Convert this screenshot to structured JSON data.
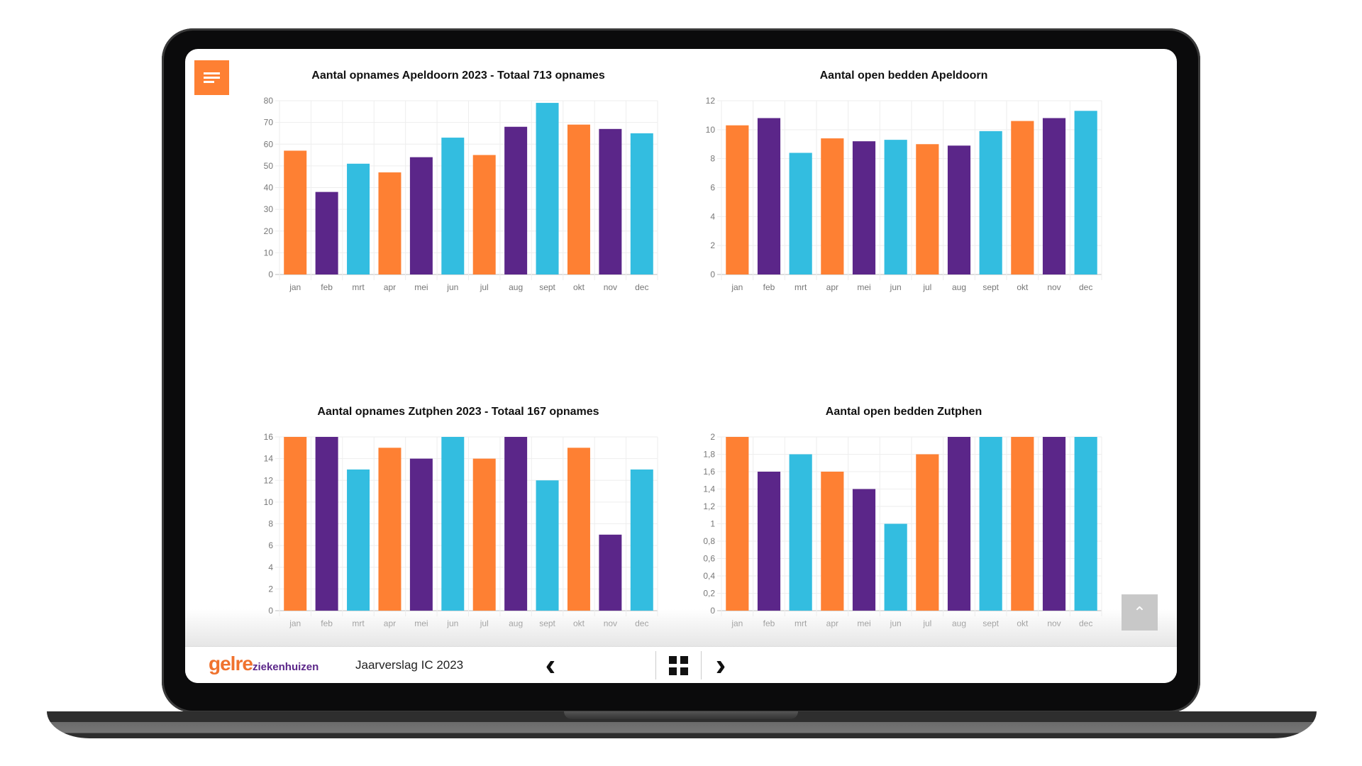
{
  "app": {
    "document_title": "Jaarverslag IC 2023",
    "logo_main": "gelre",
    "logo_sub": "ziekenhuizen"
  },
  "icons": {
    "menu": "hamburger-icon",
    "prev": "chevron-left-icon",
    "overview": "grid-icon",
    "next": "chevron-right-icon",
    "scroll_top": "chevron-up-icon"
  },
  "glyphs": {
    "prev": "‹",
    "next": "›",
    "up": "⌃"
  },
  "colors": {
    "orange": "#fe8033",
    "purple": "#5b2689",
    "cyan": "#33bde0"
  },
  "chart_data": [
    {
      "type": "bar",
      "title": "Aantal opnames Apeldoorn 2023 - Totaal 713 opnames",
      "categories": [
        "jan",
        "feb",
        "mrt",
        "apr",
        "mei",
        "jun",
        "jul",
        "aug",
        "sept",
        "okt",
        "nov",
        "dec"
      ],
      "values": [
        57,
        38,
        51,
        47,
        54,
        63,
        55,
        68,
        79,
        69,
        67,
        65
      ],
      "ylim": [
        0,
        80
      ],
      "yticks": [
        "0",
        "10",
        "20",
        "30",
        "40",
        "50",
        "60",
        "70",
        "80"
      ],
      "grid": true,
      "xlabel": "",
      "ylabel": ""
    },
    {
      "type": "bar",
      "title": "Aantal open bedden Apeldoorn",
      "categories": [
        "jan",
        "feb",
        "mrt",
        "apr",
        "mei",
        "jun",
        "jul",
        "aug",
        "sept",
        "okt",
        "nov",
        "dec"
      ],
      "values": [
        10.3,
        10.8,
        8.4,
        9.4,
        9.2,
        9.3,
        9.0,
        8.9,
        9.9,
        10.6,
        10.8,
        11.3
      ],
      "ylim": [
        0,
        12
      ],
      "yticks": [
        "0",
        "2",
        "4",
        "6",
        "8",
        "10",
        "12"
      ],
      "grid": true,
      "xlabel": "",
      "ylabel": ""
    },
    {
      "type": "bar",
      "title": "Aantal opnames Zutphen 2023 - Totaal 167 opnames",
      "categories": [
        "jan",
        "feb",
        "mrt",
        "apr",
        "mei",
        "jun",
        "jul",
        "aug",
        "sept",
        "okt",
        "nov",
        "dec"
      ],
      "values": [
        16,
        16,
        13,
        15,
        14,
        16,
        14,
        16,
        12,
        15,
        7,
        13
      ],
      "ylim": [
        0,
        16
      ],
      "yticks": [
        "0",
        "2",
        "4",
        "6",
        "8",
        "10",
        "12",
        "14",
        "16"
      ],
      "grid": true,
      "xlabel": "",
      "ylabel": ""
    },
    {
      "type": "bar",
      "title": "Aantal open bedden Zutphen",
      "categories": [
        "jan",
        "feb",
        "mrt",
        "apr",
        "mei",
        "jun",
        "jul",
        "aug",
        "sept",
        "okt",
        "nov",
        "dec"
      ],
      "values": [
        2,
        1.6,
        1.8,
        1.6,
        1.4,
        1.0,
        1.8,
        2,
        2,
        2,
        2,
        2
      ],
      "ylim": [
        0,
        2
      ],
      "yticks": [
        "0",
        "0,2",
        "0,4",
        "0,6",
        "0,8",
        "1",
        "1,2",
        "1,4",
        "1,6",
        "1,8",
        "2"
      ],
      "grid": true,
      "xlabel": "",
      "ylabel": ""
    }
  ]
}
